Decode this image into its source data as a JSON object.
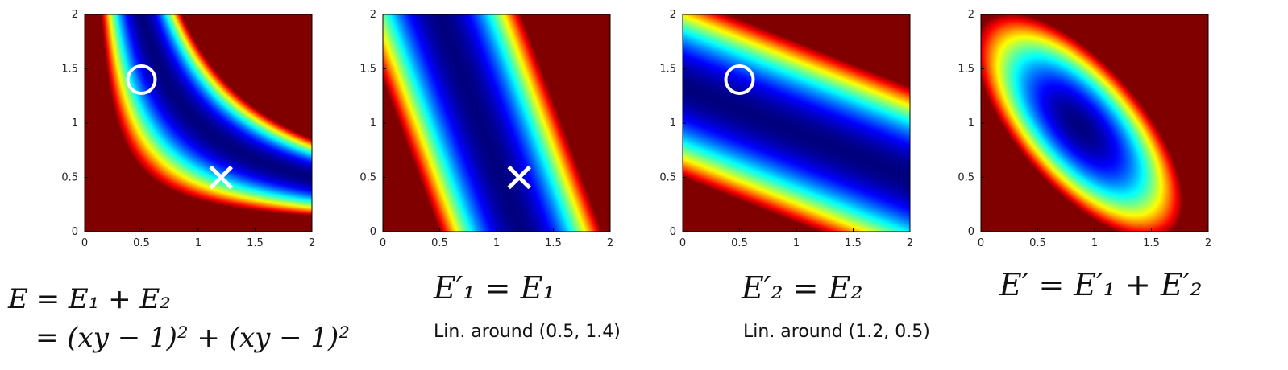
{
  "chart_data": [
    {
      "type": "heatmap",
      "field": "E",
      "xlim": [
        0,
        2
      ],
      "ylim": [
        0,
        2
      ],
      "xticks": [
        "0",
        "0.5",
        "1",
        "1.5",
        "2"
      ],
      "yticks": [
        "0",
        "0.5",
        "1",
        "1.5",
        "2"
      ],
      "markers": [
        {
          "shape": "circle",
          "x": 0.5,
          "y": 1.4
        },
        {
          "shape": "cross",
          "x": 1.2,
          "y": 0.5
        }
      ],
      "equation_lines": [
        "E = E₁ + E₂",
        "= (xy − 1)² + (xy − 1)²"
      ],
      "caption": ""
    },
    {
      "type": "heatmap",
      "field": "E1lin",
      "xlim": [
        0,
        2
      ],
      "ylim": [
        0,
        2
      ],
      "xticks": [
        "0",
        "0.5",
        "1",
        "1.5",
        "2"
      ],
      "yticks": [
        "0",
        "0.5",
        "1",
        "1.5",
        "2"
      ],
      "markers": [
        {
          "shape": "cross",
          "x": 1.2,
          "y": 0.5
        }
      ],
      "equation_lines": [
        "E′₁ = E₁"
      ],
      "caption": "Lin. around (0.5, 1.4)"
    },
    {
      "type": "heatmap",
      "field": "E2lin",
      "xlim": [
        0,
        2
      ],
      "ylim": [
        0,
        2
      ],
      "xticks": [
        "0",
        "0.5",
        "1",
        "1.5",
        "2"
      ],
      "yticks": [
        "0",
        "0.5",
        "1",
        "1.5",
        "2"
      ],
      "markers": [
        {
          "shape": "circle",
          "x": 0.5,
          "y": 1.4
        }
      ],
      "equation_lines": [
        "E′₂ = E₂"
      ],
      "caption": "Lin. around (1.2, 0.5)"
    },
    {
      "type": "heatmap",
      "field": "Esum",
      "xlim": [
        0,
        2
      ],
      "ylim": [
        0,
        2
      ],
      "xticks": [
        "0",
        "0.5",
        "1",
        "1.5",
        "2"
      ],
      "yticks": [
        "0",
        "0.5",
        "1",
        "1.5",
        "2"
      ],
      "markers": [],
      "equation_lines": [
        "E′ = E′₁ + E′₂"
      ],
      "caption": ""
    }
  ],
  "colormap": "jet",
  "marker_color": "#ffffff"
}
